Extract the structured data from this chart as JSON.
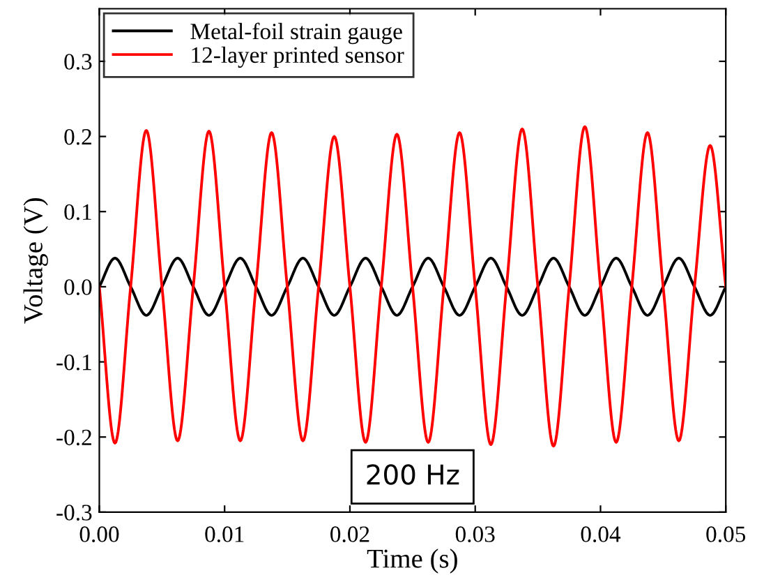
{
  "chart_data": {
    "type": "line",
    "xlabel": "Time (s)",
    "ylabel": "Voltage (V)",
    "x": [
      0,
      0.00125,
      0.0025,
      0.00375,
      0.005,
      0.00625,
      0.0075,
      0.00875,
      0.01,
      0.01125,
      0.0125,
      0.01375,
      0.015,
      0.01625,
      0.0175,
      0.01875,
      0.02,
      0.02125,
      0.0225,
      0.02375,
      0.025,
      0.02625,
      0.0275,
      0.02875,
      0.03,
      0.03125,
      0.0325,
      0.03375,
      0.035,
      0.03625,
      0.0375,
      0.03875,
      0.04,
      0.04125,
      0.0425,
      0.04375,
      0.045,
      0.04625,
      0.0475,
      0.04875,
      0.05
    ],
    "series": [
      {
        "name": "Metal-foil strain gauge",
        "color": "#000000",
        "values": [
          0,
          0.038,
          0,
          -0.038,
          0,
          0.038,
          0,
          -0.038,
          0,
          0.038,
          0,
          -0.038,
          0,
          0.038,
          0,
          -0.038,
          0,
          0.038,
          0,
          -0.038,
          0,
          0.038,
          0,
          -0.038,
          0,
          0.038,
          0,
          -0.038,
          0,
          0.038,
          0,
          -0.038,
          0,
          0.038,
          0,
          -0.038,
          0,
          0.038,
          0,
          -0.038,
          0
        ]
      },
      {
        "name": "12-layer printed sensor",
        "color": "#ff0000",
        "values": [
          0,
          -0.208,
          0,
          0.208,
          0,
          -0.205,
          0,
          0.207,
          0,
          -0.205,
          0,
          0.205,
          0,
          -0.205,
          0,
          0.2,
          0,
          -0.207,
          0,
          0.203,
          0,
          -0.207,
          0,
          0.205,
          0,
          -0.21,
          0,
          0.21,
          0,
          -0.212,
          0,
          0.213,
          0,
          -0.207,
          0,
          0.205,
          0,
          -0.205,
          0,
          0.188,
          0
        ]
      }
    ],
    "xlim": [
      0,
      0.05
    ],
    "xticks": [
      {
        "value": 0,
        "label": "0.00"
      },
      0.01,
      0.02,
      0.03,
      0.04,
      0.05
    ],
    "ylim": [
      -0.3,
      0.37
    ],
    "yticks": [
      -0.3,
      -0.2,
      -0.1,
      {
        "value": 0,
        "label": "0.0"
      },
      0.1,
      0.2,
      0.3
    ],
    "legend": "top left",
    "grid": false,
    "marker": "none",
    "line_style": "solid",
    "annotations": [
      "200 Hz"
    ]
  }
}
